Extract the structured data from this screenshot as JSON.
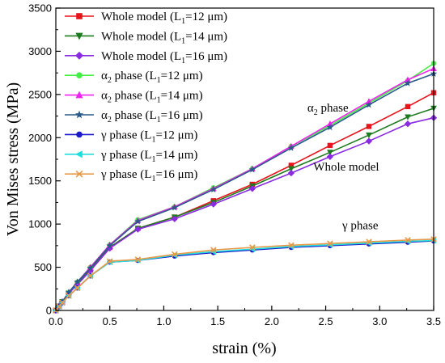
{
  "chart_data": {
    "type": "line",
    "xlabel": "strain (%)",
    "ylabel": "Von Mises stress (MPa)",
    "xlim": [
      0,
      3.5
    ],
    "ylim": [
      0,
      3500
    ],
    "x_ticks": [
      0.0,
      0.5,
      1.0,
      1.5,
      2.0,
      2.5,
      3.0,
      3.5
    ],
    "x_tick_labels": [
      "0.0",
      "0.5",
      "1.0",
      "1.5",
      "2.0",
      "2.5",
      "3.0",
      "3.5"
    ],
    "y_ticks": [
      0,
      500,
      1000,
      1500,
      2000,
      2500,
      3000,
      3500
    ],
    "y_tick_labels": [
      "0",
      "500",
      "1000",
      "1500",
      "2000",
      "2500",
      "3000",
      "3500"
    ],
    "grid": false,
    "legend_position": "top-left",
    "annotations": [
      {
        "text": "α2 phase",
        "x": 2.52,
        "y": 2300
      },
      {
        "text": "Whole model",
        "x": 2.69,
        "y": 1620
      },
      {
        "text": "γ phase",
        "x": 2.82,
        "y": 940
      }
    ],
    "series": [
      {
        "name": "Whole model (L1=12 μm)",
        "color": "#e8141c",
        "marker": "square",
        "x": [
          0,
          0.03,
          0.06,
          0.12,
          0.2,
          0.32,
          0.5,
          0.76,
          1.1,
          1.46,
          1.82,
          2.18,
          2.54,
          2.9,
          3.26,
          3.5
        ],
        "y": [
          0,
          50,
          100,
          200,
          310,
          470,
          730,
          950,
          1080,
          1270,
          1460,
          1680,
          1910,
          2130,
          2360,
          2520
        ]
      },
      {
        "name": "Whole model (L1=14 μm)",
        "color": "#1e7a1e",
        "marker": "triangle-down",
        "x": [
          0,
          0.03,
          0.06,
          0.12,
          0.2,
          0.32,
          0.5,
          0.76,
          1.1,
          1.46,
          1.82,
          2.18,
          2.54,
          2.9,
          3.26,
          3.5
        ],
        "y": [
          0,
          50,
          100,
          200,
          310,
          470,
          730,
          950,
          1080,
          1250,
          1440,
          1640,
          1830,
          2030,
          2240,
          2340
        ]
      },
      {
        "name": "Whole model (L1=16 μm)",
        "color": "#8a2be2",
        "marker": "diamond",
        "x": [
          0,
          0.03,
          0.06,
          0.12,
          0.2,
          0.32,
          0.5,
          0.76,
          1.1,
          1.46,
          1.82,
          2.18,
          2.54,
          2.9,
          3.26,
          3.5
        ],
        "y": [
          0,
          50,
          100,
          200,
          300,
          460,
          720,
          940,
          1060,
          1230,
          1410,
          1590,
          1780,
          1960,
          2160,
          2230
        ]
      },
      {
        "name": "α2 phase (L1=12 μm)",
        "color": "#44ee44",
        "marker": "circle",
        "x": [
          0,
          0.03,
          0.06,
          0.12,
          0.2,
          0.32,
          0.5,
          0.76,
          1.1,
          1.46,
          1.82,
          2.18,
          2.54,
          2.9,
          3.26,
          3.5
        ],
        "y": [
          0,
          50,
          100,
          210,
          330,
          500,
          760,
          1050,
          1200,
          1420,
          1640,
          1900,
          2140,
          2400,
          2660,
          2860
        ]
      },
      {
        "name": "α2 phase (L1=14 μm)",
        "color": "#ee22ee",
        "marker": "triangle-up",
        "x": [
          0,
          0.03,
          0.06,
          0.12,
          0.2,
          0.32,
          0.5,
          0.76,
          1.1,
          1.46,
          1.82,
          2.18,
          2.54,
          2.9,
          3.26,
          3.5
        ],
        "y": [
          0,
          50,
          100,
          210,
          330,
          500,
          760,
          1040,
          1200,
          1410,
          1640,
          1900,
          2160,
          2420,
          2670,
          2800
        ]
      },
      {
        "name": "α2 phase (L1=16 μm)",
        "color": "#2a5a8a",
        "marker": "star",
        "x": [
          0,
          0.03,
          0.06,
          0.12,
          0.2,
          0.32,
          0.5,
          0.76,
          1.1,
          1.46,
          1.82,
          2.18,
          2.54,
          2.9,
          3.26,
          3.5
        ],
        "y": [
          0,
          50,
          100,
          210,
          330,
          490,
          750,
          1030,
          1190,
          1400,
          1630,
          1880,
          2120,
          2380,
          2630,
          2740
        ]
      },
      {
        "name": "γ phase (L1=12 μm)",
        "color": "#1a1acc",
        "marker": "circle",
        "x": [
          0,
          0.03,
          0.06,
          0.12,
          0.2,
          0.32,
          0.5,
          0.76,
          1.1,
          1.46,
          1.82,
          2.18,
          2.54,
          2.9,
          3.26,
          3.5
        ],
        "y": [
          0,
          45,
          90,
          170,
          260,
          400,
          560,
          580,
          630,
          670,
          700,
          730,
          750,
          770,
          790,
          805
        ]
      },
      {
        "name": "γ phase (L1=14 μm)",
        "color": "#22dddd",
        "marker": "triangle-left",
        "x": [
          0,
          0.03,
          0.06,
          0.12,
          0.2,
          0.32,
          0.5,
          0.76,
          1.1,
          1.46,
          1.82,
          2.18,
          2.54,
          2.9,
          3.26,
          3.5
        ],
        "y": [
          0,
          45,
          90,
          170,
          260,
          400,
          560,
          580,
          640,
          680,
          710,
          740,
          760,
          780,
          800,
          810
        ]
      },
      {
        "name": "γ phase (L1=16 μm)",
        "color": "#e89a4a",
        "marker": "x",
        "x": [
          0,
          0.03,
          0.06,
          0.12,
          0.2,
          0.32,
          0.5,
          0.76,
          1.1,
          1.46,
          1.82,
          2.18,
          2.54,
          2.9,
          3.26,
          3.5
        ],
        "y": [
          0,
          45,
          90,
          170,
          260,
          400,
          570,
          590,
          650,
          700,
          730,
          755,
          775,
          795,
          815,
          825
        ]
      }
    ],
    "legend": [
      {
        "prefix": "Whole model (L",
        "sub": "1",
        "suffix": "=12 μm)"
      },
      {
        "prefix": "Whole model (L",
        "sub": "1",
        "suffix": "=14 μm)"
      },
      {
        "prefix": "Whole model (L",
        "sub": "1",
        "suffix": "=16 μm)"
      },
      {
        "prefix": "α",
        "sub": "2",
        "suffix": " phase (L",
        "sub2": "1",
        "suffix2": "=12 μm)"
      },
      {
        "prefix": "α",
        "sub": "2",
        "suffix": " phase (L",
        "sub2": "1",
        "suffix2": "=14 μm)"
      },
      {
        "prefix": "α",
        "sub": "2",
        "suffix": " phase (L",
        "sub2": "1",
        "suffix2": "=16 μm)"
      },
      {
        "prefix": "γ phase (L",
        "sub": "1",
        "suffix": "=12 μm)"
      },
      {
        "prefix": "γ phase (L",
        "sub": "1",
        "suffix": "=14 μm)"
      },
      {
        "prefix": "γ phase (L",
        "sub": "1",
        "suffix": "=16 μm)"
      }
    ]
  }
}
